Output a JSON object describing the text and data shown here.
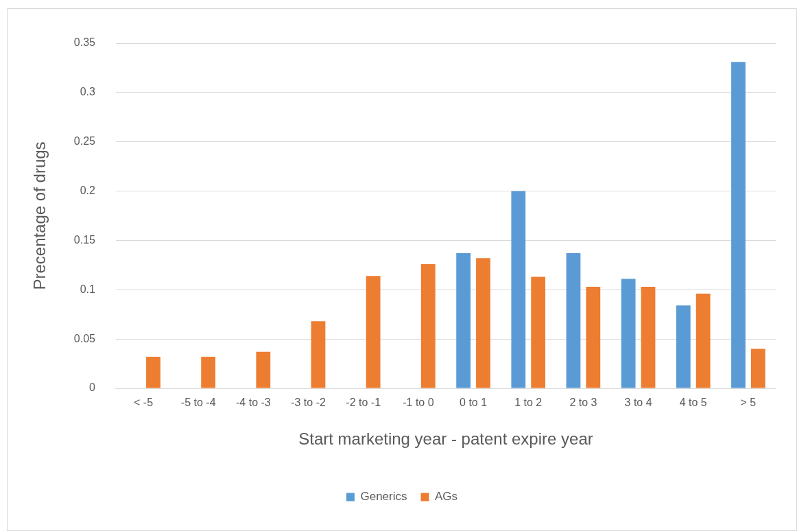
{
  "chart_data": {
    "type": "bar",
    "xlabel": "Start marketing year - patent expire year",
    "ylabel": "Precentage of drugs",
    "categories": [
      "< -5",
      "-5 to -4",
      "-4 to -3",
      "-3 to -2",
      "-2 to -1",
      "-1 to 0",
      "0 to 1",
      "1 to 2",
      "2 to 3",
      "3 to 4",
      "4 to 5",
      "> 5"
    ],
    "series": [
      {
        "name": "Generics",
        "color": "#5b9bd5",
        "values": [
          null,
          null,
          null,
          null,
          null,
          null,
          0.137,
          0.2,
          0.137,
          0.111,
          0.084,
          0.331
        ]
      },
      {
        "name": "AGs",
        "color": "#ed7d31",
        "values": [
          0.032,
          0.032,
          0.037,
          0.068,
          0.114,
          0.126,
          0.132,
          0.113,
          0.103,
          0.103,
          0.096,
          0.04
        ]
      }
    ],
    "ylim": [
      0,
      0.35
    ],
    "yticks": [
      0,
      0.05,
      0.1,
      0.15,
      0.2,
      0.25,
      0.3,
      0.35
    ],
    "grid": "y",
    "legend": "bottom"
  }
}
